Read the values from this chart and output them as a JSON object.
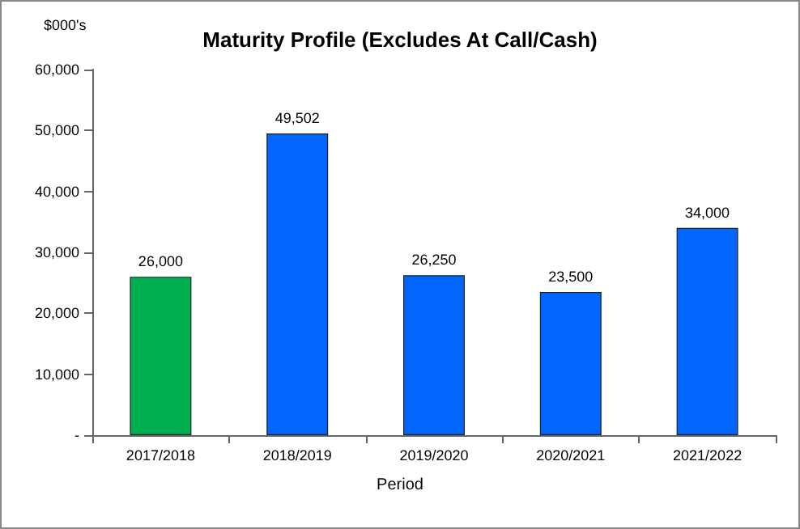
{
  "chart_data": {
    "type": "bar",
    "title": "Maturity Profile (Excludes At Call/Cash)",
    "ylabel": "$000's",
    "xlabel": "Period",
    "categories": [
      "2017/2018",
      "2018/2019",
      "2019/2020",
      "2020/2021",
      "2021/2022"
    ],
    "values": [
      26000,
      49502,
      26250,
      23500,
      34000
    ],
    "colors": [
      "#00b050",
      "#0066ff",
      "#0066ff",
      "#0066ff",
      "#0066ff"
    ],
    "value_labels": [
      "26,000",
      "49,502",
      "26,250",
      "23,500",
      "34,000"
    ],
    "ylim": [
      0,
      60000
    ],
    "yticks": [
      {
        "value": 0,
        "label": "-"
      },
      {
        "value": 10000,
        "label": "10,000"
      },
      {
        "value": 20000,
        "label": "20,000"
      },
      {
        "value": 30000,
        "label": "30,000"
      },
      {
        "value": 40000,
        "label": "40,000"
      },
      {
        "value": 50000,
        "label": "50,000"
      },
      {
        "value": 60000,
        "label": "60,000"
      }
    ],
    "grid": false
  }
}
